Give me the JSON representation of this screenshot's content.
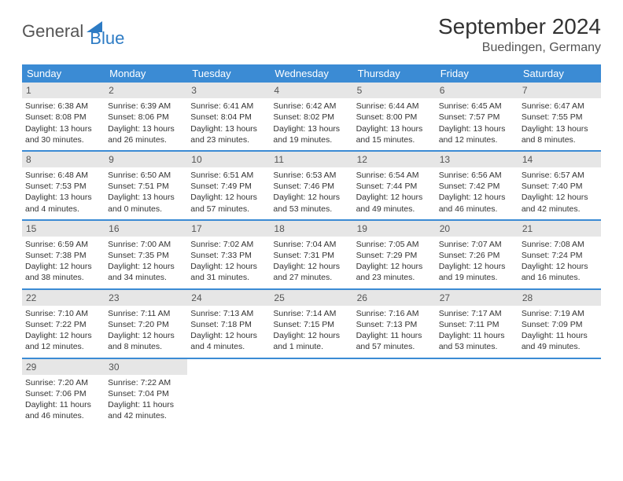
{
  "logo": {
    "general": "General",
    "blue": "Blue"
  },
  "title": "September 2024",
  "location": "Buedingen, Germany",
  "header_bg": "#3b8bd4",
  "days_of_week": [
    "Sunday",
    "Monday",
    "Tuesday",
    "Wednesday",
    "Thursday",
    "Friday",
    "Saturday"
  ],
  "cell_bg_header": "#e6e6e6",
  "border_color": "#3b8bd4",
  "days": [
    {
      "n": "1",
      "sunrise": "6:38 AM",
      "sunset": "8:08 PM",
      "dl1": "Daylight: 13 hours",
      "dl2": "and 30 minutes."
    },
    {
      "n": "2",
      "sunrise": "6:39 AM",
      "sunset": "8:06 PM",
      "dl1": "Daylight: 13 hours",
      "dl2": "and 26 minutes."
    },
    {
      "n": "3",
      "sunrise": "6:41 AM",
      "sunset": "8:04 PM",
      "dl1": "Daylight: 13 hours",
      "dl2": "and 23 minutes."
    },
    {
      "n": "4",
      "sunrise": "6:42 AM",
      "sunset": "8:02 PM",
      "dl1": "Daylight: 13 hours",
      "dl2": "and 19 minutes."
    },
    {
      "n": "5",
      "sunrise": "6:44 AM",
      "sunset": "8:00 PM",
      "dl1": "Daylight: 13 hours",
      "dl2": "and 15 minutes."
    },
    {
      "n": "6",
      "sunrise": "6:45 AM",
      "sunset": "7:57 PM",
      "dl1": "Daylight: 13 hours",
      "dl2": "and 12 minutes."
    },
    {
      "n": "7",
      "sunrise": "6:47 AM",
      "sunset": "7:55 PM",
      "dl1": "Daylight: 13 hours",
      "dl2": "and 8 minutes."
    },
    {
      "n": "8",
      "sunrise": "6:48 AM",
      "sunset": "7:53 PM",
      "dl1": "Daylight: 13 hours",
      "dl2": "and 4 minutes."
    },
    {
      "n": "9",
      "sunrise": "6:50 AM",
      "sunset": "7:51 PM",
      "dl1": "Daylight: 13 hours",
      "dl2": "and 0 minutes."
    },
    {
      "n": "10",
      "sunrise": "6:51 AM",
      "sunset": "7:49 PM",
      "dl1": "Daylight: 12 hours",
      "dl2": "and 57 minutes."
    },
    {
      "n": "11",
      "sunrise": "6:53 AM",
      "sunset": "7:46 PM",
      "dl1": "Daylight: 12 hours",
      "dl2": "and 53 minutes."
    },
    {
      "n": "12",
      "sunrise": "6:54 AM",
      "sunset": "7:44 PM",
      "dl1": "Daylight: 12 hours",
      "dl2": "and 49 minutes."
    },
    {
      "n": "13",
      "sunrise": "6:56 AM",
      "sunset": "7:42 PM",
      "dl1": "Daylight: 12 hours",
      "dl2": "and 46 minutes."
    },
    {
      "n": "14",
      "sunrise": "6:57 AM",
      "sunset": "7:40 PM",
      "dl1": "Daylight: 12 hours",
      "dl2": "and 42 minutes."
    },
    {
      "n": "15",
      "sunrise": "6:59 AM",
      "sunset": "7:38 PM",
      "dl1": "Daylight: 12 hours",
      "dl2": "and 38 minutes."
    },
    {
      "n": "16",
      "sunrise": "7:00 AM",
      "sunset": "7:35 PM",
      "dl1": "Daylight: 12 hours",
      "dl2": "and 34 minutes."
    },
    {
      "n": "17",
      "sunrise": "7:02 AM",
      "sunset": "7:33 PM",
      "dl1": "Daylight: 12 hours",
      "dl2": "and 31 minutes."
    },
    {
      "n": "18",
      "sunrise": "7:04 AM",
      "sunset": "7:31 PM",
      "dl1": "Daylight: 12 hours",
      "dl2": "and 27 minutes."
    },
    {
      "n": "19",
      "sunrise": "7:05 AM",
      "sunset": "7:29 PM",
      "dl1": "Daylight: 12 hours",
      "dl2": "and 23 minutes."
    },
    {
      "n": "20",
      "sunrise": "7:07 AM",
      "sunset": "7:26 PM",
      "dl1": "Daylight: 12 hours",
      "dl2": "and 19 minutes."
    },
    {
      "n": "21",
      "sunrise": "7:08 AM",
      "sunset": "7:24 PM",
      "dl1": "Daylight: 12 hours",
      "dl2": "and 16 minutes."
    },
    {
      "n": "22",
      "sunrise": "7:10 AM",
      "sunset": "7:22 PM",
      "dl1": "Daylight: 12 hours",
      "dl2": "and 12 minutes."
    },
    {
      "n": "23",
      "sunrise": "7:11 AM",
      "sunset": "7:20 PM",
      "dl1": "Daylight: 12 hours",
      "dl2": "and 8 minutes."
    },
    {
      "n": "24",
      "sunrise": "7:13 AM",
      "sunset": "7:18 PM",
      "dl1": "Daylight: 12 hours",
      "dl2": "and 4 minutes."
    },
    {
      "n": "25",
      "sunrise": "7:14 AM",
      "sunset": "7:15 PM",
      "dl1": "Daylight: 12 hours",
      "dl2": "and 1 minute."
    },
    {
      "n": "26",
      "sunrise": "7:16 AM",
      "sunset": "7:13 PM",
      "dl1": "Daylight: 11 hours",
      "dl2": "and 57 minutes."
    },
    {
      "n": "27",
      "sunrise": "7:17 AM",
      "sunset": "7:11 PM",
      "dl1": "Daylight: 11 hours",
      "dl2": "and 53 minutes."
    },
    {
      "n": "28",
      "sunrise": "7:19 AM",
      "sunset": "7:09 PM",
      "dl1": "Daylight: 11 hours",
      "dl2": "and 49 minutes."
    },
    {
      "n": "29",
      "sunrise": "7:20 AM",
      "sunset": "7:06 PM",
      "dl1": "Daylight: 11 hours",
      "dl2": "and 46 minutes."
    },
    {
      "n": "30",
      "sunrise": "7:22 AM",
      "sunset": "7:04 PM",
      "dl1": "Daylight: 11 hours",
      "dl2": "and 42 minutes."
    }
  ],
  "sunrise_prefix": "Sunrise: ",
  "sunset_prefix": "Sunset: "
}
